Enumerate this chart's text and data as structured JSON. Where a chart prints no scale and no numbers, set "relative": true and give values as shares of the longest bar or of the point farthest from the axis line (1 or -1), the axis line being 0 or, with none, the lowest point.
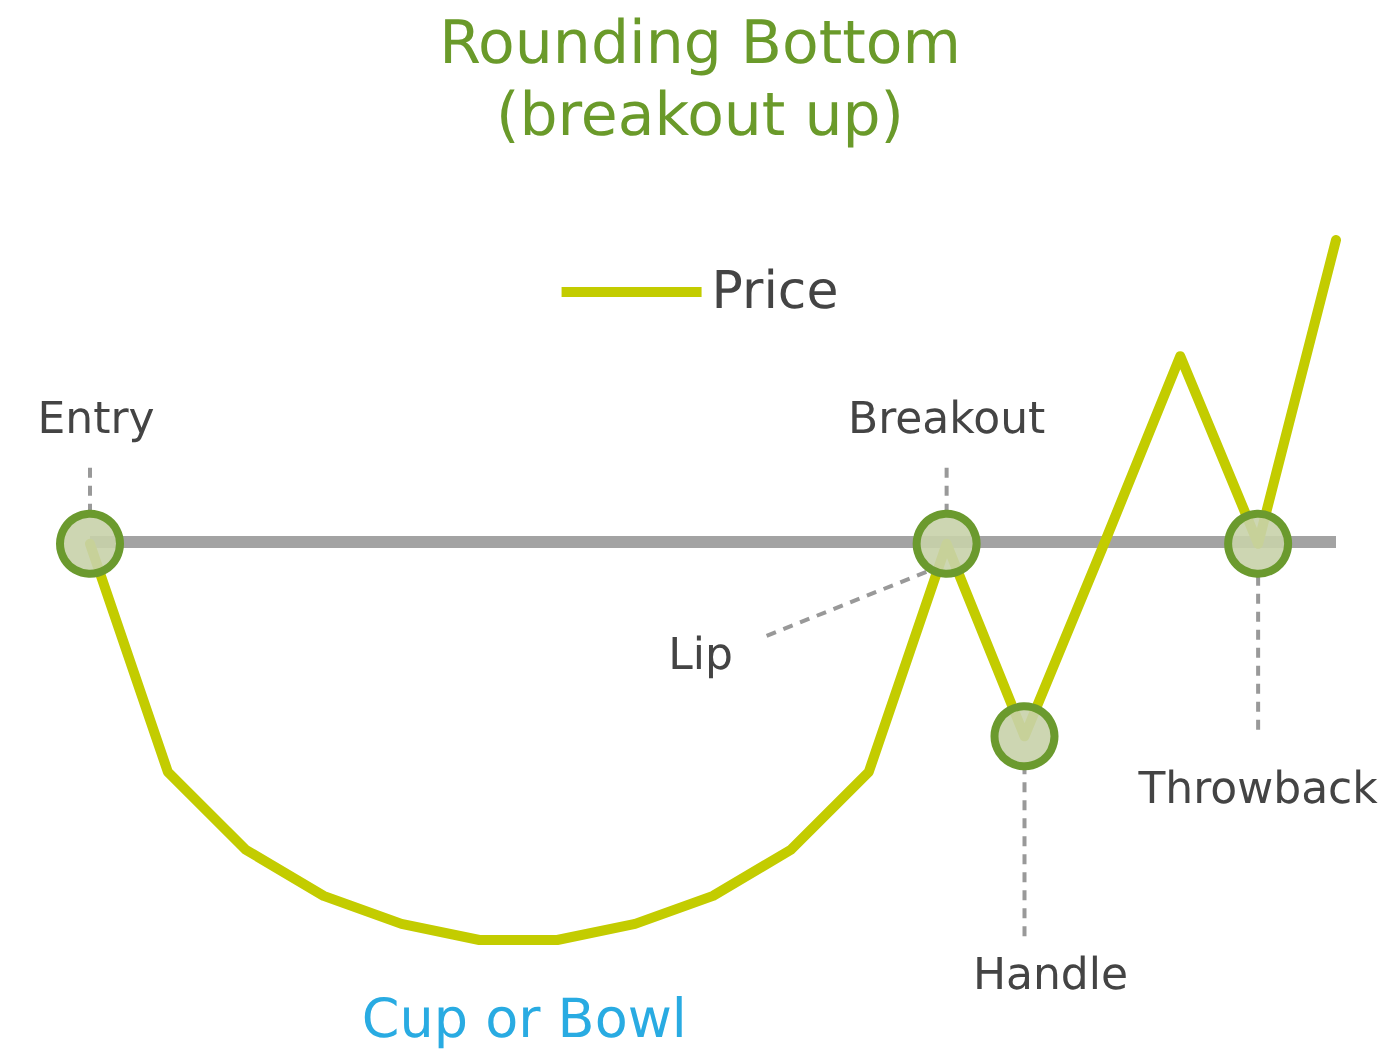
{
  "chart_data": {
    "type": "line",
    "title": "Rounding Bottom",
    "subtitle": "(breakout up)",
    "relative": true,
    "categories": [
      null,
      null,
      null,
      null,
      null,
      null,
      null,
      null,
      null,
      null,
      null,
      null,
      null,
      null,
      null,
      null,
      null
    ],
    "series": [
      {
        "name": "Price",
        "color": "#c3cc00",
        "values": [
          0.566,
          0.24,
          0.129,
          0.063,
          0.023,
          0,
          0,
          0.023,
          0.063,
          0.129,
          0.24,
          0.566,
          0.291,
          0.56,
          0.834,
          0.566,
          1
        ]
      }
    ],
    "ref_lines": [
      {
        "axis": "y",
        "value": 0.566,
        "color": "#a3a3a3"
      }
    ],
    "annotations": [
      "Entry",
      "Breakout",
      "Lip",
      "Handle",
      "Throwback",
      "Cup or Bowl"
    ],
    "legend": "top",
    "marker": "none",
    "line_style": "solid"
  }
}
